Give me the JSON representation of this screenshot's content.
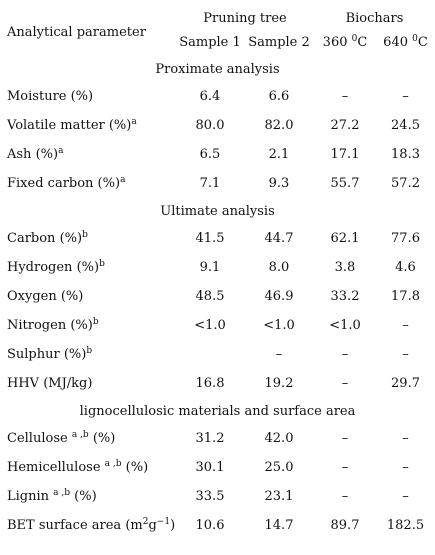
{
  "header": {
    "parameter": "Analytical parameter",
    "group_pruning": "Pruning tree",
    "group_biochars": "Biochars",
    "sample1": "Sample 1",
    "sample2": "Sample 2",
    "bio360_num": "360",
    "bio360_sup": "0",
    "bio360_unit": "C",
    "bio640_num": "640",
    "bio640_sup": "0",
    "bio640_unit": "C"
  },
  "sections": {
    "proximate": "Proximate analysis",
    "ultimate": "Ultimate analysis",
    "ligno": "lignocellulosic materials and surface area"
  },
  "rows": {
    "moisture": {
      "label": "Moisture (%)",
      "s1": "6.4",
      "s2": "6.6",
      "b360": "–",
      "b640": "–"
    },
    "volatile": {
      "label": "Volatile matter (%)",
      "sup": "a",
      "s1": "80.0",
      "s2": "82.0",
      "b360": "27.2",
      "b640": "24.5"
    },
    "ash": {
      "label": "Ash (%)",
      "sup": "a",
      "s1": "6.5",
      "s2": "2.1",
      "b360": "17.1",
      "b640": "18.3"
    },
    "fixed_carbon": {
      "label": "Fixed carbon (%)",
      "sup": "a",
      "s1": "7.1",
      "s2": "9.3",
      "b360": "55.7",
      "b640": "57.2"
    },
    "carbon": {
      "label": "Carbon (%)",
      "sup": "b",
      "s1": "41.5",
      "s2": "44.7",
      "b360": "62.1",
      "b640": "77.6"
    },
    "hydrogen": {
      "label": "Hydrogen (%)",
      "sup": "b",
      "s1": "9.1",
      "s2": "8.0",
      "b360": "3.8",
      "b640": "4.6"
    },
    "oxygen": {
      "label": "Oxygen (%)",
      "s1": "48.5",
      "s2": "46.9",
      "b360": "33.2",
      "b640": "17.8"
    },
    "nitrogen": {
      "label": "Nitrogen (%)",
      "sup": "b",
      "s1": "<1.0",
      "s2": "<1.0",
      "b360": "<1.0",
      "b640": "–"
    },
    "sulphur": {
      "label": "Sulphur (%)",
      "sup": "b",
      "s1": "",
      "s2": "–",
      "b360": "–",
      "b640": "–"
    },
    "hhv": {
      "label": "HHV (MJ/kg)",
      "s1": "16.8",
      "s2": "19.2",
      "b360": "–",
      "b640": "29.7"
    },
    "cellulose": {
      "label_main": "Cellulose",
      "sup": "a ,b",
      "label_tail": "(%)",
      "s1": "31.2",
      "s2": "42.0",
      "b360": "–",
      "b640": "–"
    },
    "hemicellulose": {
      "label_main": "Hemicellulose",
      "sup": "a ,b",
      "label_tail": "(%)",
      "s1": "30.1",
      "s2": "25.0",
      "b360": "–",
      "b640": "–"
    },
    "lignin": {
      "label_main": "Lignin",
      "sup": "a ,b",
      "label_tail": "(%)",
      "s1": "33.5",
      "s2": "23.1",
      "b360": "–",
      "b640": "–"
    },
    "bet": {
      "label_main": "BET surface area (m",
      "sup1": "2",
      "label_mid": "g",
      "sup2": "−1",
      "label_tail": ")",
      "s1": "10.6",
      "s2": "14.7",
      "b360": "89.7",
      "b640": "182.5"
    }
  }
}
